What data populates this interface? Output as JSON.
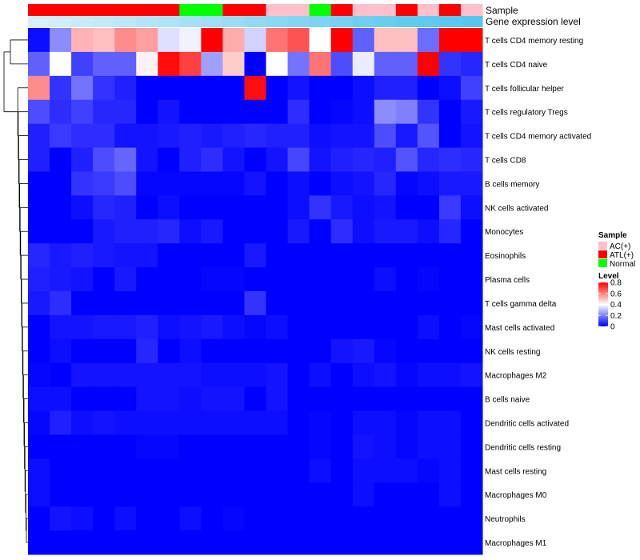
{
  "chart_data": {
    "type": "heatmap",
    "annotation_rows": [
      {
        "name": "Sample",
        "values": [
          "ATL(+)",
          "ATL(+)",
          "ATL(+)",
          "ATL(+)",
          "ATL(+)",
          "ATL(+)",
          "ATL(+)",
          "Normal",
          "Normal",
          "ATL(+)",
          "ATL(+)",
          "AC(+)",
          "AC(+)",
          "Normal",
          "ATL(+)",
          "AC(+)",
          "AC(+)",
          "ATL(+)",
          "AC(+)",
          "ATL(+)",
          "AC(+)"
        ]
      },
      {
        "name": "Gene expression level",
        "values": [
          0.05,
          0.1,
          0.15,
          0.2,
          0.25,
          0.3,
          0.35,
          0.4,
          0.45,
          0.5,
          0.55,
          0.6,
          0.65,
          0.7,
          0.75,
          0.8,
          0.85,
          0.9,
          0.93,
          0.96,
          1.0
        ]
      }
    ],
    "rows": [
      "T cells CD4 memory resting",
      "T cells CD4 naive",
      "T cells follicular helper",
      "T cells regulatory  Tregs",
      "T cells CD4 memory activated",
      "T cells CD8",
      "B cells memory",
      "NK cells activated",
      "Monocytes",
      "Eosinophils",
      "Plasma cells",
      "T cells gamma delta",
      "Mast cells activated",
      "NK cells resting",
      "Macrophages M2",
      "B cells naive",
      "Dendritic cells activated",
      "Dendritic cells resting",
      "Mast cells resting",
      "Macrophages M0",
      "Neutrophils",
      "Macrophages M1"
    ],
    "values": [
      [
        0.02,
        0.22,
        0.52,
        0.5,
        0.58,
        0.55,
        0.35,
        0.38,
        0.8,
        0.53,
        0.33,
        0.62,
        0.67,
        0.4,
        0.8,
        0.15,
        0.5,
        0.5,
        0.17,
        0.8,
        0.8
      ],
      [
        0.15,
        0.4,
        0.1,
        0.15,
        0.15,
        0.42,
        0.78,
        0.7,
        0.25,
        0.48,
        0.0,
        0.4,
        0.18,
        0.62,
        0.12,
        0.37,
        0.15,
        0.15,
        0.8,
        0.08,
        0.06
      ],
      [
        0.58,
        0.08,
        0.18,
        0.08,
        0.05,
        0.0,
        0.0,
        0.0,
        0.0,
        0.0,
        0.78,
        0.0,
        0.03,
        0.0,
        0.0,
        0.02,
        0.05,
        0.05,
        0.0,
        0.02,
        0.1
      ],
      [
        0.12,
        0.07,
        0.1,
        0.06,
        0.06,
        0.0,
        0.03,
        0.0,
        0.0,
        0.0,
        0.0,
        0.0,
        0.07,
        0.0,
        0.01,
        0.02,
        0.22,
        0.2,
        0.08,
        0.0,
        0.04
      ],
      [
        0.05,
        0.09,
        0.07,
        0.07,
        0.03,
        0.03,
        0.04,
        0.05,
        0.04,
        0.05,
        0.06,
        0.05,
        0.05,
        0.02,
        0.03,
        0.03,
        0.12,
        0.04,
        0.13,
        0.0,
        0.03
      ],
      [
        0.05,
        0.0,
        0.05,
        0.12,
        0.16,
        0.03,
        0.0,
        0.05,
        0.07,
        0.03,
        0.0,
        0.03,
        0.11,
        0.03,
        0.05,
        0.06,
        0.05,
        0.13,
        0.06,
        0.07,
        0.06
      ],
      [
        0.0,
        0.0,
        0.08,
        0.09,
        0.12,
        0.01,
        0.01,
        0.01,
        0.01,
        0.01,
        0.03,
        0.0,
        0.02,
        0.0,
        0.02,
        0.03,
        0.06,
        0.01,
        0.02,
        0.04,
        0.04
      ],
      [
        0.0,
        0.0,
        0.02,
        0.06,
        0.05,
        0.0,
        0.02,
        0.0,
        0.0,
        0.0,
        0.0,
        0.0,
        0.02,
        0.08,
        0.04,
        0.02,
        0.03,
        0.0,
        0.0,
        0.09,
        0.02
      ],
      [
        0.0,
        0.0,
        0.0,
        0.04,
        0.05,
        0.05,
        0.06,
        0.02,
        0.04,
        0.0,
        0.0,
        0.0,
        0.04,
        0.0,
        0.07,
        0.02,
        0.04,
        0.04,
        0.02,
        0.06,
        0.0
      ],
      [
        0.06,
        0.04,
        0.05,
        0.04,
        0.03,
        0.03,
        0.0,
        0.0,
        0.0,
        0.0,
        0.04,
        0.0,
        0.0,
        0.0,
        0.0,
        0.0,
        0.0,
        0.0,
        0.0,
        0.0,
        0.0
      ],
      [
        0.05,
        0.04,
        0.03,
        0.0,
        0.04,
        0.0,
        0.0,
        0.0,
        0.01,
        0.01,
        0.0,
        0.0,
        0.0,
        0.0,
        0.0,
        0.0,
        0.02,
        0.0,
        0.01,
        0.0,
        0.0
      ],
      [
        0.04,
        0.07,
        0.0,
        0.0,
        0.0,
        0.0,
        0.0,
        0.0,
        0.0,
        0.0,
        0.08,
        0.0,
        0.0,
        0.0,
        0.0,
        0.0,
        0.0,
        0.0,
        0.0,
        0.0,
        0.0
      ],
      [
        0.0,
        0.03,
        0.03,
        0.04,
        0.04,
        0.05,
        0.02,
        0.03,
        0.04,
        0.02,
        0.01,
        0.02,
        0.0,
        0.0,
        0.0,
        0.0,
        0.0,
        0.0,
        0.02,
        0.0,
        0.01
      ],
      [
        0.0,
        0.02,
        0.0,
        0.0,
        0.0,
        0.06,
        0.0,
        0.02,
        0.0,
        0.0,
        0.0,
        0.0,
        0.0,
        0.0,
        0.03,
        0.04,
        0.01,
        0.0,
        0.0,
        0.0,
        0.0
      ],
      [
        0.01,
        0.0,
        0.03,
        0.03,
        0.03,
        0.03,
        0.03,
        0.03,
        0.02,
        0.02,
        0.02,
        0.03,
        0.0,
        0.02,
        0.0,
        0.02,
        0.03,
        0.01,
        0.02,
        0.02,
        0.03
      ],
      [
        0.02,
        0.02,
        0.0,
        0.0,
        0.0,
        0.03,
        0.03,
        0.02,
        0.03,
        0.03,
        0.0,
        0.03,
        0.0,
        0.0,
        0.0,
        0.0,
        0.0,
        0.0,
        0.0,
        0.0,
        0.0
      ],
      [
        0.01,
        0.05,
        0.02,
        0.03,
        0.02,
        0.02,
        0.02,
        0.02,
        0.02,
        0.02,
        0.02,
        0.02,
        0.0,
        0.01,
        0.0,
        0.02,
        0.02,
        0.01,
        0.02,
        0.02,
        0.0
      ],
      [
        0.0,
        0.0,
        0.0,
        0.0,
        0.0,
        0.01,
        0.01,
        0.0,
        0.0,
        0.0,
        0.0,
        0.0,
        0.0,
        0.01,
        0.0,
        0.03,
        0.02,
        0.01,
        0.02,
        0.02,
        0.0
      ],
      [
        0.02,
        0.0,
        0.0,
        0.0,
        0.0,
        0.0,
        0.0,
        0.0,
        0.0,
        0.0,
        0.0,
        0.0,
        0.0,
        0.02,
        0.0,
        0.02,
        0.02,
        0.02,
        0.01,
        0.02,
        0.0
      ],
      [
        0.02,
        0.0,
        0.0,
        0.0,
        0.0,
        0.0,
        0.0,
        0.0,
        0.0,
        0.0,
        0.0,
        0.0,
        0.0,
        0.0,
        0.0,
        0.02,
        0.0,
        0.0,
        0.0,
        0.02,
        0.0
      ],
      [
        0.0,
        0.03,
        0.02,
        0.0,
        0.02,
        0.0,
        0.0,
        0.02,
        0.0,
        0.01,
        0.0,
        0.0,
        0.0,
        0.0,
        0.0,
        0.0,
        0.0,
        0.0,
        0.0,
        0.0,
        0.0
      ],
      [
        0.0,
        0.0,
        0.0,
        0.0,
        0.0,
        0.0,
        0.0,
        0.0,
        0.0,
        0.0,
        0.0,
        0.0,
        0.0,
        0.0,
        0.0,
        0.0,
        0.0,
        0.0,
        0.0,
        0.0,
        0.0
      ]
    ],
    "color_scale": {
      "stops": [
        {
          "value": 0.0,
          "color": "#0000ff"
        },
        {
          "value": 0.4,
          "color": "#ffffff"
        },
        {
          "value": 0.8,
          "color": "#ff0000"
        }
      ]
    },
    "legends": [
      {
        "title": "Sample",
        "entries": [
          {
            "label": "AC(+)",
            "color": "#ffc0cb"
          },
          {
            "label": "ATL(+)",
            "color": "#ff0000"
          },
          {
            "label": "Normal",
            "color": "#00ff00"
          }
        ]
      },
      {
        "title": "Level",
        "ticks": [
          "0.8",
          "0.6",
          "0.4",
          "0.2",
          "0"
        ],
        "tick_values": [
          0.8,
          0.6,
          0.4,
          0.2,
          0
        ]
      }
    ],
    "row_dendrogram": true,
    "legend_position": "right"
  },
  "colors": {
    "expr_low": "#ddf2fa",
    "expr_high": "#55c6ee",
    "dendrogram": "#000000"
  }
}
